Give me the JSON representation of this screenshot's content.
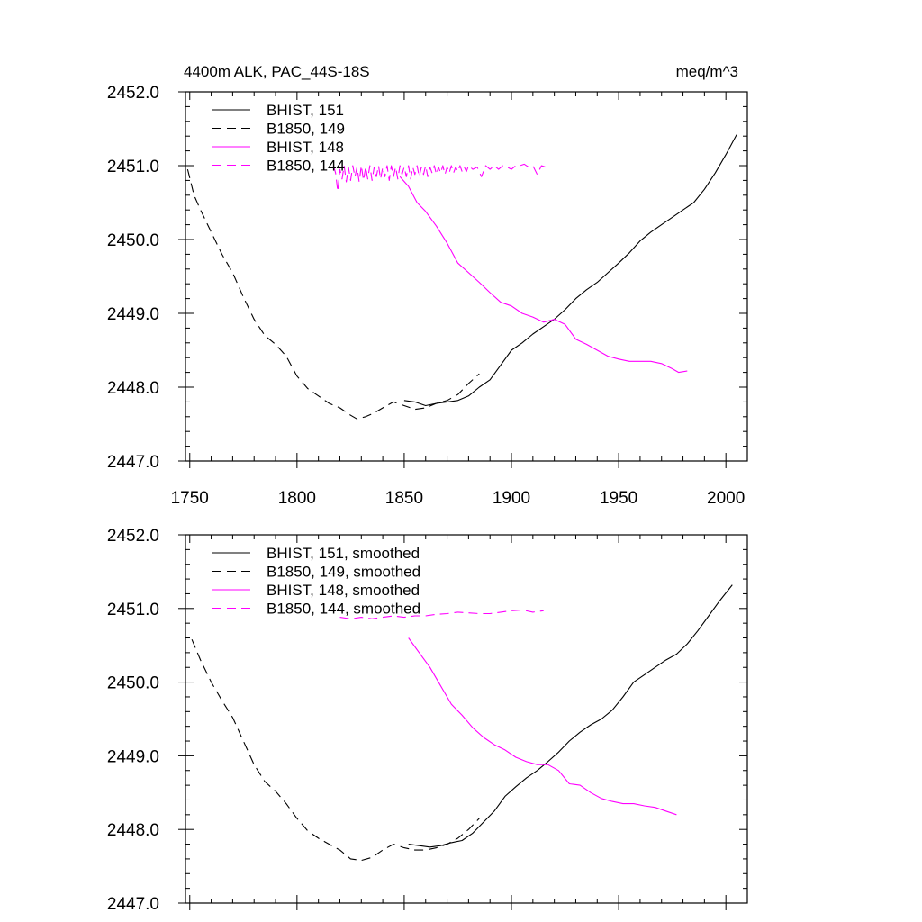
{
  "colors": {
    "black": "#000000",
    "magenta": "#ff00ff"
  },
  "chart_data": [
    {
      "type": "line",
      "title": "4400m ALK, PAC_44S-18S",
      "units": "meq/m^3",
      "xlabel": "",
      "ylabel": "",
      "xlim": [
        1748,
        2010
      ],
      "ylim": [
        2447.0,
        2452.0
      ],
      "x_ticks": [
        "1750",
        "1800",
        "1850",
        "1900",
        "1950",
        "2000"
      ],
      "y_ticks": [
        "2447.0",
        "2448.0",
        "2449.0",
        "2450.0",
        "2451.0",
        "2452.0"
      ],
      "show_x_tick_labels": true,
      "legend_position": "top-left",
      "series": [
        {
          "name": "BHIST, 151",
          "color": "#000000",
          "dash": "solid",
          "x": [
            1850,
            1855,
            1860,
            1865,
            1870,
            1875,
            1880,
            1885,
            1890,
            1895,
            1900,
            1905,
            1910,
            1915,
            1920,
            1925,
            1930,
            1935,
            1940,
            1945,
            1950,
            1955,
            1960,
            1965,
            1970,
            1975,
            1980,
            1985,
            1990,
            1995,
            2000,
            2005
          ],
          "values": [
            2447.82,
            2447.8,
            2447.75,
            2447.78,
            2447.8,
            2447.82,
            2447.88,
            2448.0,
            2448.1,
            2448.3,
            2448.5,
            2448.6,
            2448.72,
            2448.82,
            2448.92,
            2449.05,
            2449.2,
            2449.32,
            2449.42,
            2449.55,
            2449.68,
            2449.82,
            2449.98,
            2450.1,
            2450.2,
            2450.3,
            2450.4,
            2450.5,
            2450.68,
            2450.9,
            2451.15,
            2451.42
          ]
        },
        {
          "name": "B1850, 149",
          "color": "#000000",
          "dash": "dashed",
          "x": [
            1749,
            1752,
            1755,
            1760,
            1765,
            1770,
            1775,
            1780,
            1785,
            1790,
            1795,
            1800,
            1805,
            1810,
            1815,
            1820,
            1825,
            1828,
            1832,
            1836,
            1840,
            1845,
            1850,
            1855,
            1860,
            1865,
            1870,
            1875,
            1880,
            1885
          ],
          "values": [
            2450.95,
            2450.6,
            2450.4,
            2450.1,
            2449.8,
            2449.55,
            2449.22,
            2448.92,
            2448.7,
            2448.58,
            2448.42,
            2448.15,
            2447.98,
            2447.88,
            2447.78,
            2447.72,
            2447.62,
            2447.57,
            2447.6,
            2447.65,
            2447.72,
            2447.8,
            2447.75,
            2447.7,
            2447.72,
            2447.78,
            2447.82,
            2447.9,
            2448.05,
            2448.18
          ]
        },
        {
          "name": "BHIST, 148",
          "color": "#ff00ff",
          "dash": "solid",
          "x": [
            1848,
            1852,
            1856,
            1860,
            1865,
            1870,
            1875,
            1880,
            1885,
            1890,
            1895,
            1900,
            1905,
            1910,
            1915,
            1920,
            1925,
            1930,
            1935,
            1940,
            1945,
            1950,
            1955,
            1960,
            1965,
            1970,
            1975,
            1978,
            1982
          ],
          "values": [
            2450.85,
            2450.72,
            2450.5,
            2450.38,
            2450.18,
            2449.95,
            2449.68,
            2449.55,
            2449.42,
            2449.28,
            2449.15,
            2449.1,
            2449.0,
            2448.95,
            2448.88,
            2448.92,
            2448.85,
            2448.65,
            2448.58,
            2448.5,
            2448.42,
            2448.38,
            2448.35,
            2448.35,
            2448.35,
            2448.32,
            2448.25,
            2448.2,
            2448.22
          ]
        },
        {
          "name": "B1850, 144",
          "color": "#ff00ff",
          "dash": "dashed",
          "x": [
            1817,
            1818,
            1819,
            1820,
            1821,
            1822,
            1823,
            1824,
            1825,
            1826,
            1827,
            1828,
            1829,
            1830,
            1831,
            1832,
            1833,
            1834,
            1835,
            1836,
            1837,
            1838,
            1839,
            1840,
            1841,
            1842,
            1843,
            1844,
            1845,
            1846,
            1847,
            1848,
            1849,
            1850,
            1851,
            1852,
            1853,
            1854,
            1855,
            1856,
            1857,
            1858,
            1859,
            1860,
            1861,
            1862,
            1863,
            1864,
            1865,
            1866,
            1867,
            1868,
            1869,
            1870,
            1871,
            1872,
            1873,
            1874,
            1875,
            1876,
            1877,
            1878,
            1879,
            1880,
            1882,
            1884,
            1886,
            1888,
            1890,
            1892,
            1894,
            1896,
            1898,
            1900,
            1902,
            1904,
            1906,
            1908,
            1910,
            1912,
            1914,
            1916
          ],
          "values": [
            2451.0,
            2450.9,
            2450.65,
            2450.95,
            2450.82,
            2451.0,
            2450.78,
            2450.98,
            2450.8,
            2451.0,
            2450.85,
            2450.98,
            2450.78,
            2451.0,
            2450.8,
            2450.98,
            2450.82,
            2451.0,
            2450.8,
            2450.98,
            2450.85,
            2451.0,
            2450.82,
            2450.98,
            2450.85,
            2451.0,
            2450.8,
            2451.0,
            2450.85,
            2450.98,
            2450.82,
            2451.0,
            2450.88,
            2450.98,
            2450.85,
            2451.0,
            2450.82,
            2450.98,
            2450.88,
            2451.0,
            2450.85,
            2450.98,
            2450.88,
            2451.0,
            2450.85,
            2450.98,
            2450.9,
            2451.0,
            2450.88,
            2450.98,
            2450.9,
            2451.0,
            2450.88,
            2450.98,
            2450.9,
            2451.0,
            2450.9,
            2450.98,
            2450.92,
            2451.0,
            2450.92,
            2450.98,
            2450.92,
            2451.0,
            2450.95,
            2450.98,
            2450.85,
            2451.0,
            2450.95,
            2451.0,
            2450.95,
            2451.0,
            2450.98,
            2450.95,
            2451.0,
            2451.0,
            2451.02,
            2450.98,
            2451.0,
            2450.88,
            2451.0,
            2450.98
          ]
        }
      ]
    },
    {
      "type": "line",
      "title": "",
      "xlabel": "",
      "ylabel": "",
      "xlim": [
        1748,
        2010
      ],
      "ylim": [
        2447.0,
        2452.0
      ],
      "y_ticks": [
        "2447.0",
        "2448.0",
        "2449.0",
        "2450.0",
        "2451.0",
        "2452.0"
      ],
      "show_x_tick_labels": false,
      "legend_position": "top-left",
      "series": [
        {
          "name": "BHIST, 151, smoothed",
          "color": "#000000",
          "dash": "solid",
          "x": [
            1852,
            1857,
            1862,
            1867,
            1872,
            1877,
            1882,
            1887,
            1892,
            1897,
            1902,
            1907,
            1912,
            1917,
            1922,
            1927,
            1932,
            1937,
            1942,
            1947,
            1952,
            1957,
            1962,
            1967,
            1972,
            1977,
            1982,
            1987,
            1992,
            1997,
            2003
          ],
          "values": [
            2447.8,
            2447.78,
            2447.76,
            2447.78,
            2447.82,
            2447.85,
            2447.95,
            2448.1,
            2448.25,
            2448.45,
            2448.58,
            2448.7,
            2448.8,
            2448.92,
            2449.05,
            2449.2,
            2449.32,
            2449.42,
            2449.5,
            2449.62,
            2449.8,
            2450.0,
            2450.1,
            2450.2,
            2450.3,
            2450.38,
            2450.52,
            2450.7,
            2450.9,
            2451.1,
            2451.32
          ]
        },
        {
          "name": "B1850, 149, smoothed",
          "color": "#000000",
          "dash": "dashed",
          "x": [
            1751,
            1755,
            1760,
            1765,
            1770,
            1775,
            1780,
            1785,
            1790,
            1795,
            1800,
            1805,
            1810,
            1815,
            1820,
            1825,
            1830,
            1835,
            1840,
            1845,
            1850,
            1855,
            1860,
            1865,
            1870,
            1875,
            1880,
            1885
          ],
          "values": [
            2450.58,
            2450.3,
            2450.0,
            2449.75,
            2449.52,
            2449.2,
            2448.88,
            2448.65,
            2448.52,
            2448.35,
            2448.15,
            2447.98,
            2447.88,
            2447.8,
            2447.72,
            2447.6,
            2447.58,
            2447.62,
            2447.72,
            2447.8,
            2447.75,
            2447.72,
            2447.72,
            2447.75,
            2447.8,
            2447.88,
            2448.0,
            2448.15
          ]
        },
        {
          "name": "BHIST, 148, smoothed",
          "color": "#ff00ff",
          "dash": "solid",
          "x": [
            1852,
            1857,
            1862,
            1867,
            1872,
            1877,
            1882,
            1887,
            1892,
            1897,
            1902,
            1907,
            1912,
            1917,
            1922,
            1927,
            1932,
            1937,
            1942,
            1947,
            1952,
            1957,
            1962,
            1967,
            1972,
            1977
          ],
          "values": [
            2450.6,
            2450.4,
            2450.2,
            2449.95,
            2449.7,
            2449.55,
            2449.38,
            2449.25,
            2449.15,
            2449.08,
            2448.98,
            2448.92,
            2448.88,
            2448.88,
            2448.8,
            2448.62,
            2448.6,
            2448.5,
            2448.42,
            2448.38,
            2448.35,
            2448.35,
            2448.32,
            2448.3,
            2448.25,
            2448.2
          ]
        },
        {
          "name": "B1850, 144, smoothed",
          "color": "#ff00ff",
          "dash": "dashed",
          "x": [
            1820,
            1825,
            1830,
            1835,
            1840,
            1845,
            1850,
            1855,
            1860,
            1865,
            1870,
            1875,
            1880,
            1885,
            1890,
            1895,
            1900,
            1905,
            1910,
            1915
          ],
          "values": [
            2450.88,
            2450.86,
            2450.88,
            2450.86,
            2450.88,
            2450.9,
            2450.88,
            2450.9,
            2450.9,
            2450.92,
            2450.93,
            2450.95,
            2450.94,
            2450.93,
            2450.93,
            2450.95,
            2450.97,
            2450.98,
            2450.95,
            2450.97
          ]
        }
      ]
    }
  ]
}
